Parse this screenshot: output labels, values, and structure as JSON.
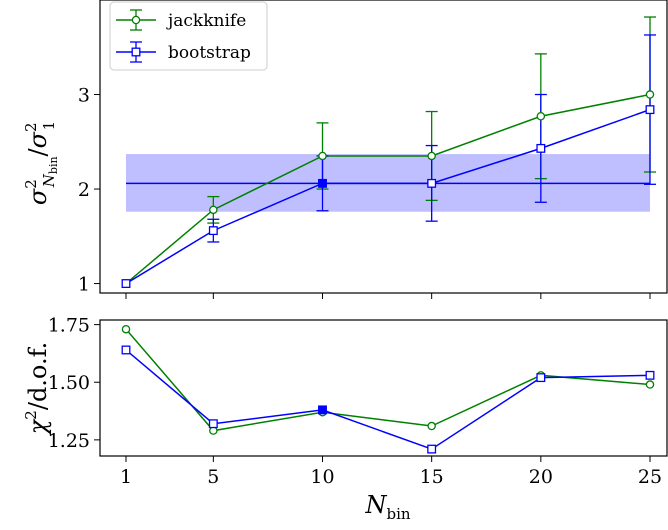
{
  "chart_data": [
    {
      "type": "line",
      "panel": "top",
      "x": [
        1,
        5,
        10,
        15,
        20,
        25
      ],
      "ylabel": "σ²_{N_bin}/σ²_1",
      "ylim": [
        0.9,
        4.0
      ],
      "yticks": [
        1,
        2,
        3
      ],
      "ytick_labels": [
        "1",
        "2",
        "3"
      ],
      "legend_placement": "top-left",
      "series": [
        {
          "name": "jackknife",
          "color": "#008000",
          "marker": "circle",
          "values": [
            1.0,
            1.78,
            2.35,
            2.35,
            2.77,
            3.0
          ],
          "err_low": [
            0.0,
            0.14,
            0.35,
            0.47,
            0.66,
            0.82
          ],
          "err_high": [
            0.0,
            0.14,
            0.35,
            0.47,
            0.66,
            0.82
          ]
        },
        {
          "name": "bootstrap",
          "color": "#0000ff",
          "marker": "square",
          "values": [
            1.0,
            1.56,
            2.06,
            2.06,
            2.43,
            2.84
          ],
          "err_low": [
            0.0,
            0.12,
            0.29,
            0.4,
            0.57,
            0.79
          ],
          "err_high": [
            0.0,
            0.12,
            0.29,
            0.4,
            0.57,
            0.79
          ]
        }
      ],
      "band": {
        "center": 2.06,
        "low": 1.76,
        "high": 2.37,
        "x_range": [
          1,
          25
        ],
        "color": "#0000ff"
      },
      "highlighted_point": {
        "x": 10,
        "y": 2.06
      }
    },
    {
      "type": "line",
      "panel": "bottom",
      "x": [
        1,
        5,
        10,
        15,
        20,
        25
      ],
      "xlabel": "N_bin",
      "ylabel": "χ²/d.o.f.",
      "xticks": [
        1,
        5,
        10,
        15,
        20,
        25
      ],
      "xtick_labels": [
        "1",
        "5",
        "10",
        "15",
        "20",
        "25"
      ],
      "ylim": [
        1.18,
        1.77
      ],
      "yticks": [
        1.25,
        1.5,
        1.75
      ],
      "ytick_labels": [
        "1.25",
        "1.50",
        "1.75"
      ],
      "series": [
        {
          "name": "jackknife",
          "color": "#008000",
          "marker": "circle",
          "values": [
            1.73,
            1.29,
            1.37,
            1.31,
            1.53,
            1.49
          ]
        },
        {
          "name": "bootstrap",
          "color": "#0000ff",
          "marker": "square",
          "values": [
            1.64,
            1.32,
            1.38,
            1.21,
            1.52,
            1.53
          ]
        }
      ],
      "highlighted_point": {
        "x": 10,
        "y": 1.38
      }
    }
  ]
}
